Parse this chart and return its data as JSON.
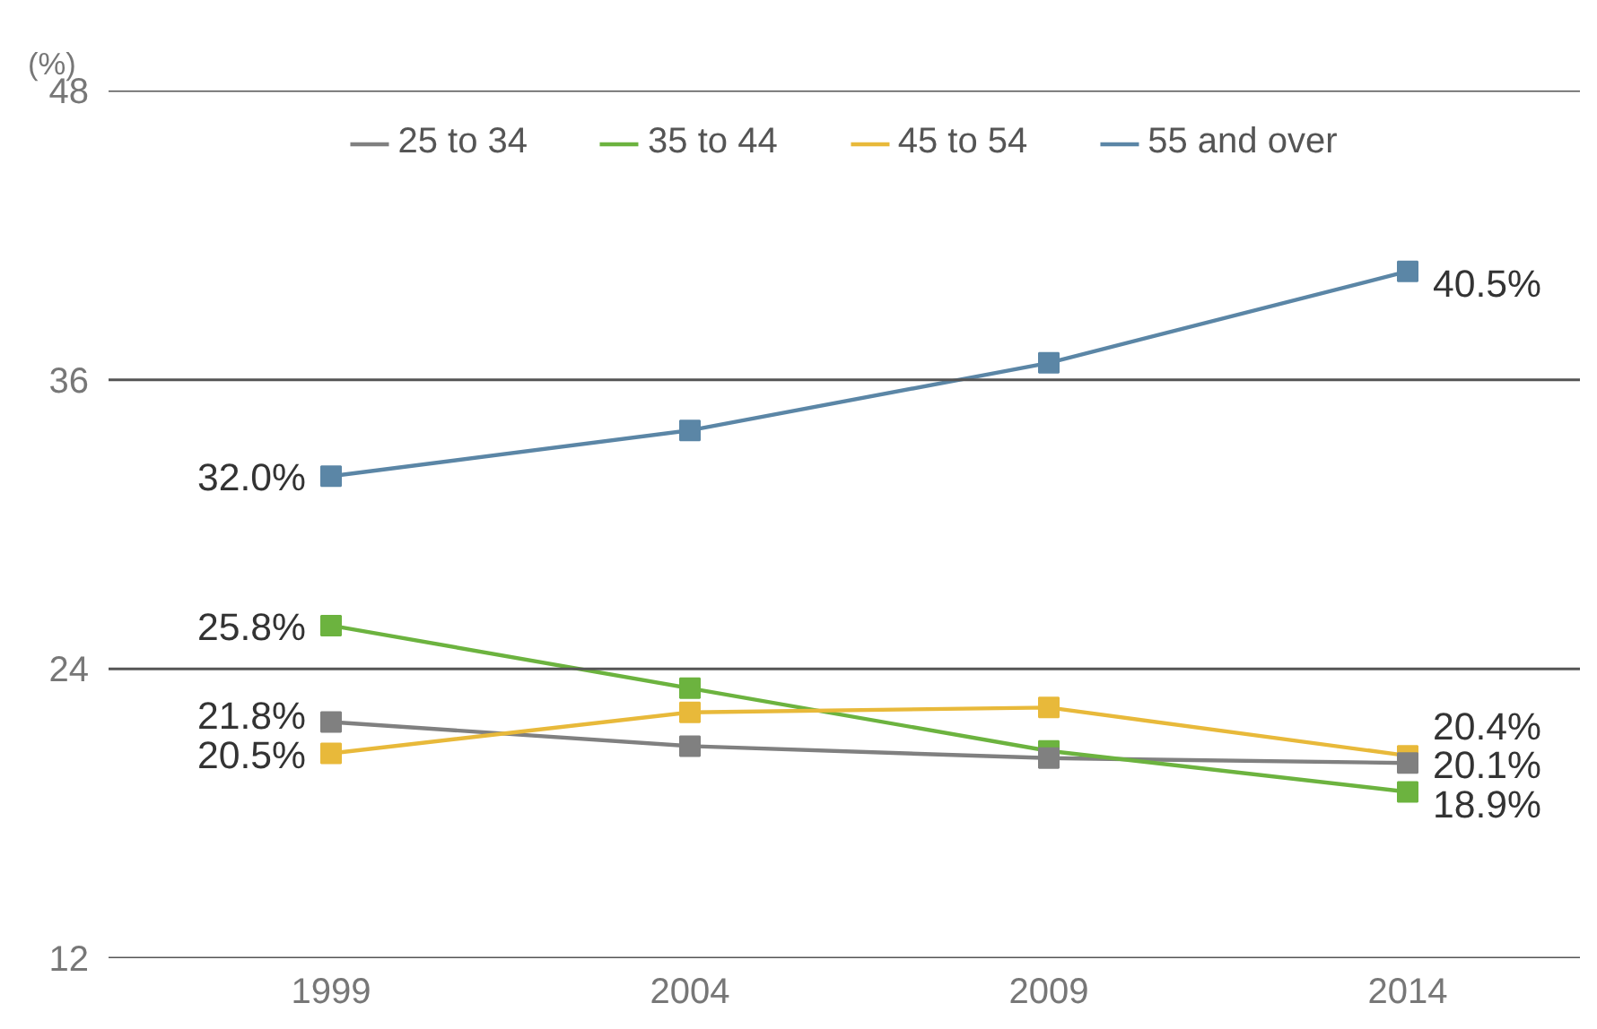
{
  "chart_data": {
    "type": "line",
    "ylabel": "(%)",
    "x": [
      1999,
      2004,
      2009,
      2014
    ],
    "xlim": [
      1995.9,
      2016.4
    ],
    "xticks": [
      1999,
      2004,
      2009,
      2014
    ],
    "ylim": [
      12,
      48
    ],
    "yticks": [
      12,
      24,
      36,
      48
    ],
    "grid": "y",
    "legend": "top",
    "marker": "square",
    "line_style": "solid",
    "series": [
      {
        "name": "25 to 34",
        "color": "#808080",
        "values": [
          21.8,
          20.8,
          20.3,
          20.1
        ],
        "value_labels": [
          "21.8%",
          null,
          null,
          "20.1%"
        ]
      },
      {
        "name": "35 to 44",
        "color": "#6cb33f",
        "values": [
          25.8,
          23.2,
          20.6,
          18.9
        ],
        "value_labels": [
          "25.8%",
          null,
          null,
          "18.9%"
        ]
      },
      {
        "name": "45 to 54",
        "color": "#e8b93a",
        "values": [
          20.5,
          22.2,
          22.4,
          20.4
        ],
        "value_labels": [
          "20.5%",
          null,
          null,
          "20.4%"
        ]
      },
      {
        "name": "55 and over",
        "color": "#5b86a6",
        "values": [
          32.0,
          33.9,
          36.7,
          40.5
        ],
        "value_labels": [
          "32.0%",
          null,
          null,
          "40.5%"
        ]
      }
    ]
  }
}
